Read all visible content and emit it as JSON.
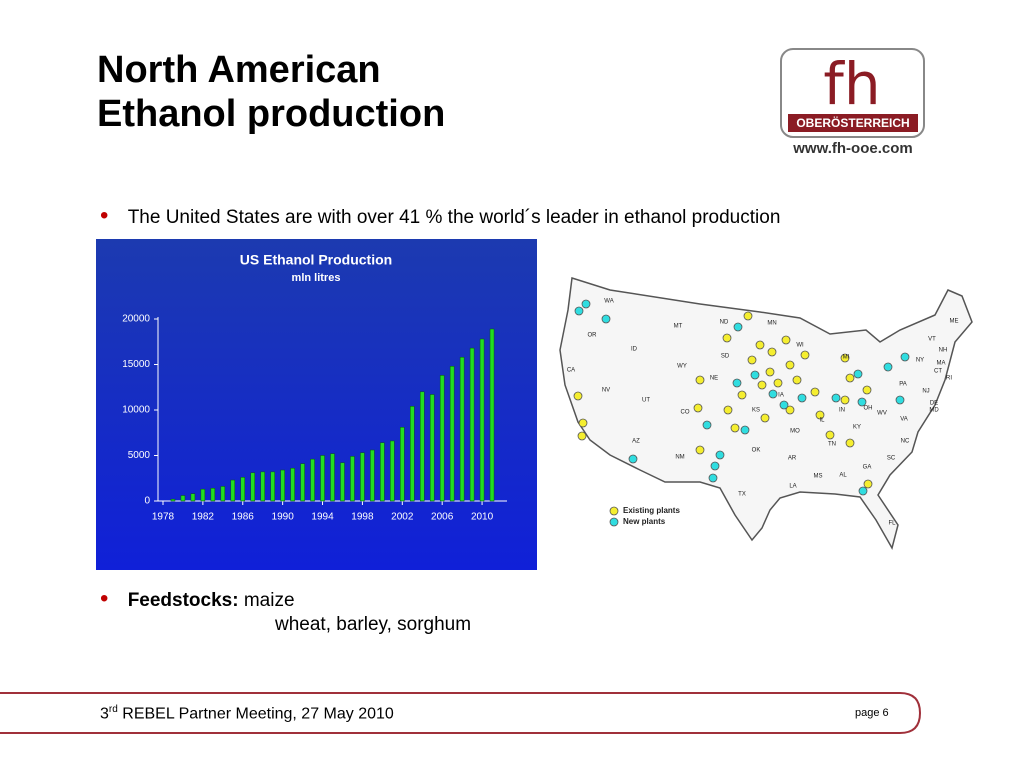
{
  "title_lines": [
    "North American",
    "Ethanol production"
  ],
  "logo": {
    "mark": "fh",
    "region": "OBERÖSTERREICH",
    "url": "www.fh-ooe.com"
  },
  "bullets": [
    {
      "text": "The United States are with over 41 % the world´s leader in ethanol production"
    },
    {
      "label": "Feedstocks:",
      "lines": [
        "maize",
        "wheat, barley, sorghum"
      ]
    }
  ],
  "chart_data": {
    "type": "bar",
    "title": "US Ethanol Production",
    "subtitle": "mln litres",
    "x": [
      1979,
      1980,
      1981,
      1982,
      1983,
      1984,
      1985,
      1986,
      1987,
      1988,
      1989,
      1990,
      1991,
      1992,
      1993,
      1994,
      1995,
      1996,
      1997,
      1998,
      1999,
      2000,
      2001,
      2002,
      2003,
      2004,
      2005,
      2006,
      2007,
      2008,
      2009,
      2010,
      2011
    ],
    "values": [
      200,
      600,
      800,
      1300,
      1400,
      1600,
      2300,
      2600,
      3100,
      3200,
      3200,
      3400,
      3600,
      4100,
      4600,
      5000,
      5200,
      4200,
      4900,
      5300,
      5600,
      6400,
      6600,
      8100,
      10400,
      12000,
      11700,
      13800,
      14800,
      15800,
      16800,
      17800,
      18900
    ],
    "color": "#22dd22",
    "xlim": [
      1977.5,
      2012.5
    ],
    "xticks": [
      1978,
      1982,
      1986,
      1990,
      1994,
      1998,
      2002,
      2006,
      2010
    ],
    "ylim": [
      0,
      20000
    ],
    "yticks": [
      0,
      5000,
      10000,
      15000,
      20000
    ],
    "grid": false
  },
  "map": {
    "states": [
      "WA",
      "OR",
      "CA",
      "NV",
      "ID",
      "MT",
      "WY",
      "UT",
      "AZ",
      "CO",
      "NM",
      "ND",
      "SD",
      "NE",
      "KS",
      "OK",
      "TX",
      "MN",
      "IA",
      "MO",
      "AR",
      "LA",
      "WI",
      "IL",
      "MI",
      "IN",
      "OH",
      "KY",
      "TN",
      "MS",
      "AL",
      "GA",
      "FL",
      "SC",
      "NC",
      "VA",
      "WV",
      "PA",
      "NY",
      "ME",
      "VT",
      "NH",
      "MA",
      "CT",
      "RI",
      "NJ",
      "DE",
      "MD"
    ],
    "legend": [
      "Existing plants",
      "New plants"
    ]
  },
  "footer": {
    "ordinal": "3",
    "suffix": "rd",
    "text": " REBEL Partner Meeting, 27 May 2010",
    "page": "page 6"
  }
}
